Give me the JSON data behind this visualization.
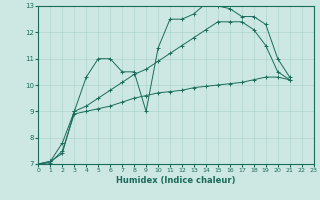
{
  "xlabel": "Humidex (Indice chaleur)",
  "xlim": [
    0,
    23
  ],
  "ylim": [
    7,
    13
  ],
  "yticks": [
    7,
    8,
    9,
    10,
    11,
    12,
    13
  ],
  "xticks": [
    0,
    1,
    2,
    3,
    4,
    5,
    6,
    7,
    8,
    9,
    10,
    11,
    12,
    13,
    14,
    15,
    16,
    17,
    18,
    19,
    20,
    21,
    22,
    23
  ],
  "bg_color": "#cde8e3",
  "line_color": "#1a6b5a",
  "grid_color": "#afd4cc",
  "series": [
    {
      "x": [
        0,
        1,
        2,
        3,
        4,
        5,
        6,
        7,
        8,
        9,
        10,
        11,
        12,
        13,
        14,
        15,
        16,
        17,
        18,
        19,
        20,
        21
      ],
      "y": [
        7.0,
        7.1,
        7.4,
        9.0,
        10.3,
        11.0,
        11.0,
        10.5,
        10.5,
        9.0,
        11.4,
        12.5,
        12.5,
        12.7,
        13.1,
        13.0,
        12.9,
        12.6,
        12.6,
        12.3,
        11.0,
        10.3
      ]
    },
    {
      "x": [
        0,
        1,
        2,
        3,
        4,
        5,
        6,
        7,
        8,
        9,
        10,
        11,
        12,
        13,
        14,
        15,
        16,
        17,
        18,
        19,
        20,
        21
      ],
      "y": [
        7.0,
        7.05,
        7.5,
        8.9,
        9.0,
        9.1,
        9.2,
        9.35,
        9.5,
        9.6,
        9.7,
        9.75,
        9.8,
        9.9,
        9.95,
        10.0,
        10.05,
        10.1,
        10.2,
        10.3,
        10.3,
        10.2
      ]
    },
    {
      "x": [
        0,
        1,
        2,
        3,
        4,
        5,
        6,
        7,
        8,
        9,
        10,
        11,
        12,
        13,
        14,
        15,
        16,
        17,
        18,
        19,
        20,
        21
      ],
      "y": [
        7.0,
        7.1,
        7.8,
        9.0,
        9.2,
        9.5,
        9.8,
        10.1,
        10.4,
        10.6,
        10.9,
        11.2,
        11.5,
        11.8,
        12.1,
        12.4,
        12.4,
        12.4,
        12.1,
        11.5,
        10.5,
        10.2
      ]
    }
  ]
}
